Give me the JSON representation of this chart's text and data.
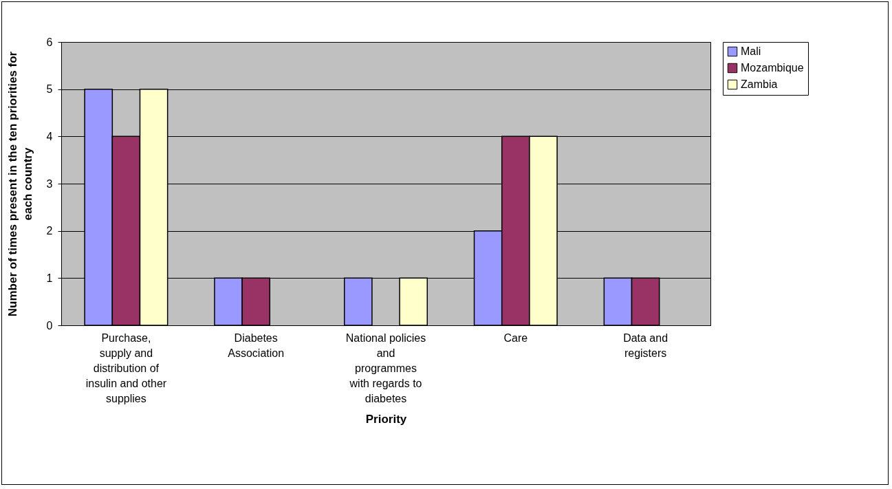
{
  "chart_data": {
    "type": "bar",
    "xlabel": "Priority",
    "ylabel": "Number of times present in the ten priorities for each country",
    "categories": [
      "Purchase, supply and distribution of insulin and other supplies",
      "Diabetes Association",
      "National policies and programmes with regards to diabetes",
      "Care",
      "Data and registers"
    ],
    "series": [
      {
        "name": "Mali",
        "color": "#9999ff",
        "values": [
          5,
          1,
          1,
          2,
          1
        ]
      },
      {
        "name": "Mozambique",
        "color": "#993366",
        "values": [
          4,
          1,
          null,
          4,
          1
        ]
      },
      {
        "name": "Zambia",
        "color": "#ffffcc",
        "values": [
          5,
          null,
          1,
          4,
          null
        ]
      }
    ],
    "ylim": [
      0,
      6
    ],
    "yticks": [
      0,
      1,
      2,
      3,
      4,
      5,
      6
    ],
    "grid": "y",
    "legend": "right"
  }
}
